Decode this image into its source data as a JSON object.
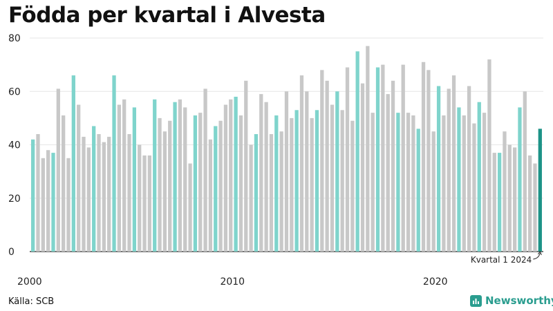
{
  "title": "Födda per kvartal i Alvesta",
  "source": "Källa: SCB",
  "brand": {
    "name": "Newsworthy",
    "icon": "newsworthy-logo-icon"
  },
  "colors": {
    "q1": "#7fd4cc",
    "other": "#c8c8c8",
    "latest": "#1d9387",
    "axis": "#222222",
    "grid": "#e6e6e6"
  },
  "chart_data": {
    "type": "bar",
    "title": "Födda per kvartal i Alvesta",
    "ylim": [
      0,
      80
    ],
    "yticks": [
      0,
      20,
      40,
      60,
      80
    ],
    "xtick_labels": [
      {
        "label": "2000",
        "index": 0
      },
      {
        "label": "2010",
        "index": 40
      },
      {
        "label": "2020",
        "index": 80
      }
    ],
    "grid": true,
    "annotation": {
      "text": "Kvartal 1 2024",
      "index": 100
    },
    "start_year": 2000,
    "values": [
      42,
      44,
      35,
      38,
      37,
      61,
      51,
      35,
      66,
      55,
      43,
      39,
      47,
      44,
      41,
      43,
      66,
      55,
      57,
      44,
      54,
      40,
      36,
      36,
      57,
      50,
      45,
      49,
      56,
      57,
      54,
      33,
      51,
      52,
      61,
      42,
      47,
      49,
      55,
      57,
      58,
      51,
      64,
      40,
      44,
      59,
      56,
      44,
      51,
      45,
      60,
      50,
      53,
      66,
      60,
      50,
      53,
      68,
      64,
      55,
      60,
      53,
      69,
      49,
      75,
      63,
      77,
      52,
      69,
      70,
      59,
      64,
      52,
      70,
      52,
      51,
      46,
      71,
      68,
      45,
      62,
      51,
      61,
      66,
      54,
      51,
      62,
      48,
      56,
      52,
      72,
      37,
      37,
      45,
      40,
      39,
      54,
      60,
      36,
      33,
      46
    ]
  }
}
